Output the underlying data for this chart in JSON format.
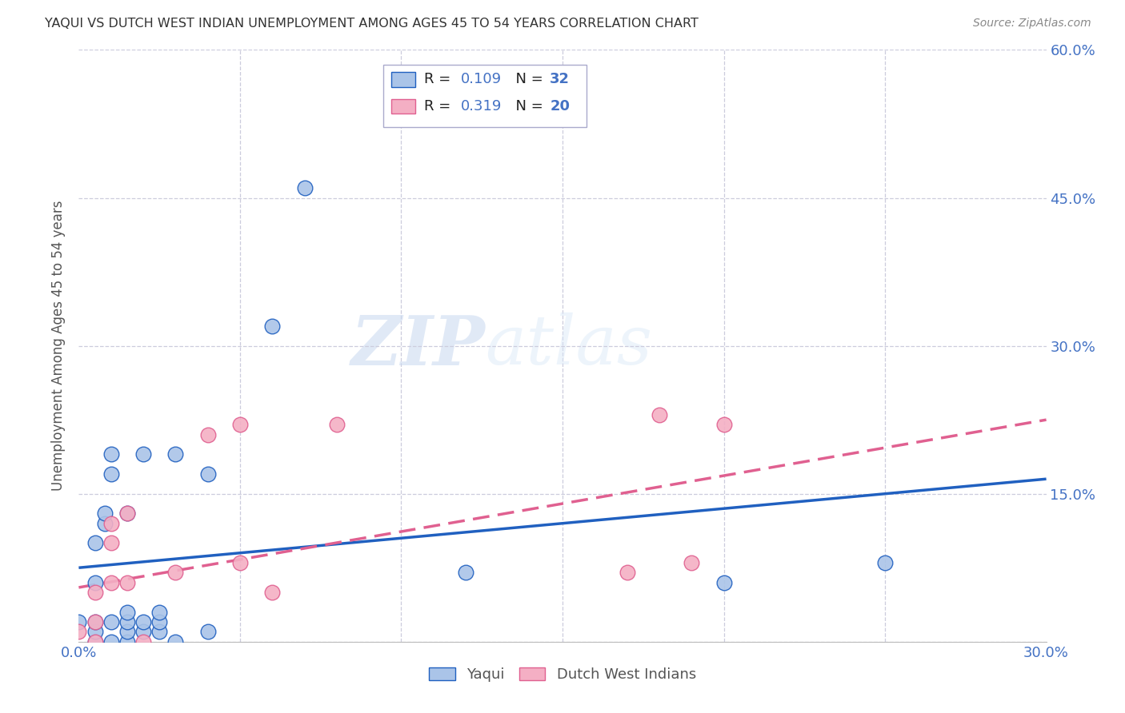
{
  "title": "YAQUI VS DUTCH WEST INDIAN UNEMPLOYMENT AMONG AGES 45 TO 54 YEARS CORRELATION CHART",
  "source": "Source: ZipAtlas.com",
  "ylabel": "Unemployment Among Ages 45 to 54 years",
  "xlim": [
    0.0,
    0.3
  ],
  "ylim": [
    0.0,
    0.6
  ],
  "xticks": [
    0.0,
    0.05,
    0.1,
    0.15,
    0.2,
    0.25,
    0.3
  ],
  "yticks": [
    0.0,
    0.15,
    0.3,
    0.45,
    0.6
  ],
  "yticklabels_right": [
    "",
    "15.0%",
    "30.0%",
    "45.0%",
    "60.0%"
  ],
  "yaqui_R": "0.109",
  "yaqui_N": "32",
  "dutch_R": "0.319",
  "dutch_N": "20",
  "yaqui_color": "#aac4e8",
  "dutch_color": "#f4afc4",
  "yaqui_line_color": "#2060c0",
  "dutch_line_color": "#e06090",
  "watermark_zip": "ZIP",
  "watermark_atlas": "atlas",
  "yaqui_scatter_x": [
    0.0,
    0.005,
    0.005,
    0.005,
    0.005,
    0.005,
    0.008,
    0.008,
    0.01,
    0.01,
    0.01,
    0.01,
    0.015,
    0.015,
    0.015,
    0.015,
    0.015,
    0.02,
    0.02,
    0.02,
    0.025,
    0.025,
    0.025,
    0.03,
    0.03,
    0.04,
    0.04,
    0.06,
    0.07,
    0.12,
    0.2,
    0.25
  ],
  "yaqui_scatter_y": [
    0.02,
    0.0,
    0.01,
    0.02,
    0.06,
    0.1,
    0.12,
    0.13,
    0.0,
    0.02,
    0.17,
    0.19,
    0.0,
    0.01,
    0.02,
    0.03,
    0.13,
    0.01,
    0.02,
    0.19,
    0.01,
    0.02,
    0.03,
    0.0,
    0.19,
    0.01,
    0.17,
    0.32,
    0.46,
    0.07,
    0.06,
    0.08
  ],
  "dutch_scatter_x": [
    0.0,
    0.005,
    0.005,
    0.005,
    0.01,
    0.01,
    0.01,
    0.015,
    0.015,
    0.02,
    0.03,
    0.04,
    0.05,
    0.05,
    0.06,
    0.08,
    0.17,
    0.18,
    0.19,
    0.2
  ],
  "dutch_scatter_y": [
    0.01,
    0.0,
    0.02,
    0.05,
    0.06,
    0.1,
    0.12,
    0.06,
    0.13,
    0.0,
    0.07,
    0.21,
    0.08,
    0.22,
    0.05,
    0.22,
    0.07,
    0.23,
    0.08,
    0.22
  ],
  "yaqui_trend_x": [
    0.0,
    0.3
  ],
  "yaqui_trend_y": [
    0.075,
    0.165
  ],
  "dutch_trend_x": [
    0.0,
    0.3
  ],
  "dutch_trend_y": [
    0.055,
    0.225
  ],
  "grid_color": "#ccccdd",
  "title_color": "#333333",
  "axis_color": "#4472c4",
  "legend_text_color": "#4472c4",
  "legend_label_color": "#333333"
}
